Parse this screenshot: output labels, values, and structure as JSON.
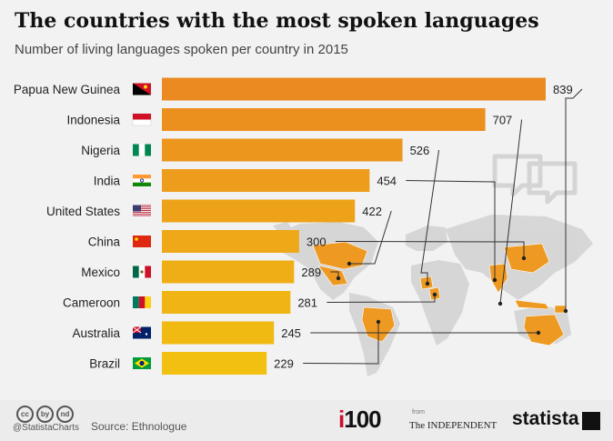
{
  "header": {
    "title": "The countries with the most spoken languages",
    "subtitle": "Number of living languages spoken per country in 2015"
  },
  "chart_data": {
    "type": "bar",
    "orientation": "horizontal",
    "categories": [
      "Papua New Guinea",
      "Indonesia",
      "Nigeria",
      "India",
      "United States",
      "China",
      "Mexico",
      "Cameroon",
      "Australia",
      "Brazil"
    ],
    "values": [
      839,
      707,
      526,
      454,
      422,
      300,
      289,
      281,
      245,
      229
    ],
    "flags": [
      "papua-new-guinea-flag",
      "indonesia-flag",
      "nigeria-flag",
      "india-flag",
      "united-states-flag",
      "china-flag",
      "mexico-flag",
      "cameroon-flag",
      "australia-flag",
      "brazil-flag"
    ],
    "xlim": [
      0,
      839
    ],
    "bar_color_top": "#ea8a21",
    "bar_color_bottom": "#f2c010"
  },
  "footer": {
    "license_icons": [
      "cc",
      "by",
      "nd"
    ],
    "handle": "@StatistaCharts",
    "source": "Source: Ethnologue",
    "i100_prefix": "i",
    "i100_number": "100",
    "from": "from",
    "independent": "The INDEPENDENT",
    "statista": "statista"
  }
}
